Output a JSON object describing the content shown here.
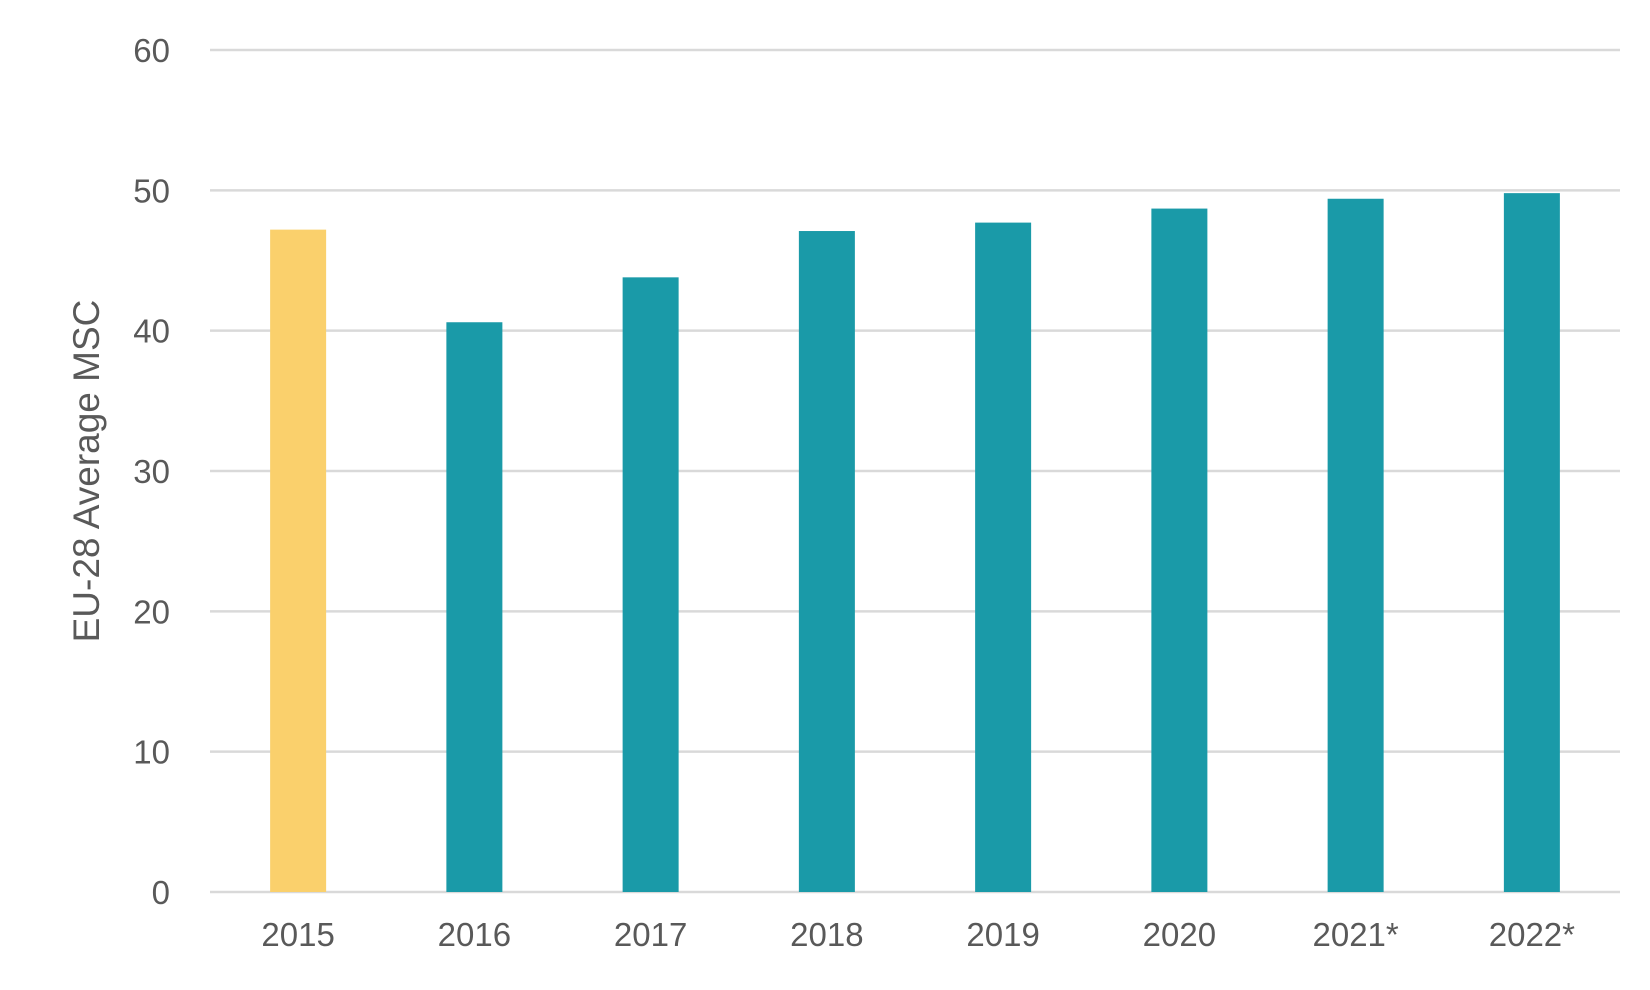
{
  "chart_data": {
    "type": "bar",
    "title": "",
    "xlabel": "",
    "ylabel": "EU-28 Average MSC",
    "ylim": [
      0,
      60
    ],
    "yticks": [
      "0",
      "10",
      "20",
      "30",
      "40",
      "50",
      "60"
    ],
    "grid": true,
    "legend": "none",
    "categories": [
      "2015",
      "2016",
      "2017",
      "2018",
      "2019",
      "2020",
      "2021*",
      "2022*"
    ],
    "values": [
      47.2,
      40.6,
      43.8,
      47.1,
      47.7,
      48.7,
      49.4,
      49.8
    ],
    "colors": {
      "baseline_year": "#FAD06C",
      "bars": "#1A9AA8"
    },
    "highlight_index": 0
  }
}
